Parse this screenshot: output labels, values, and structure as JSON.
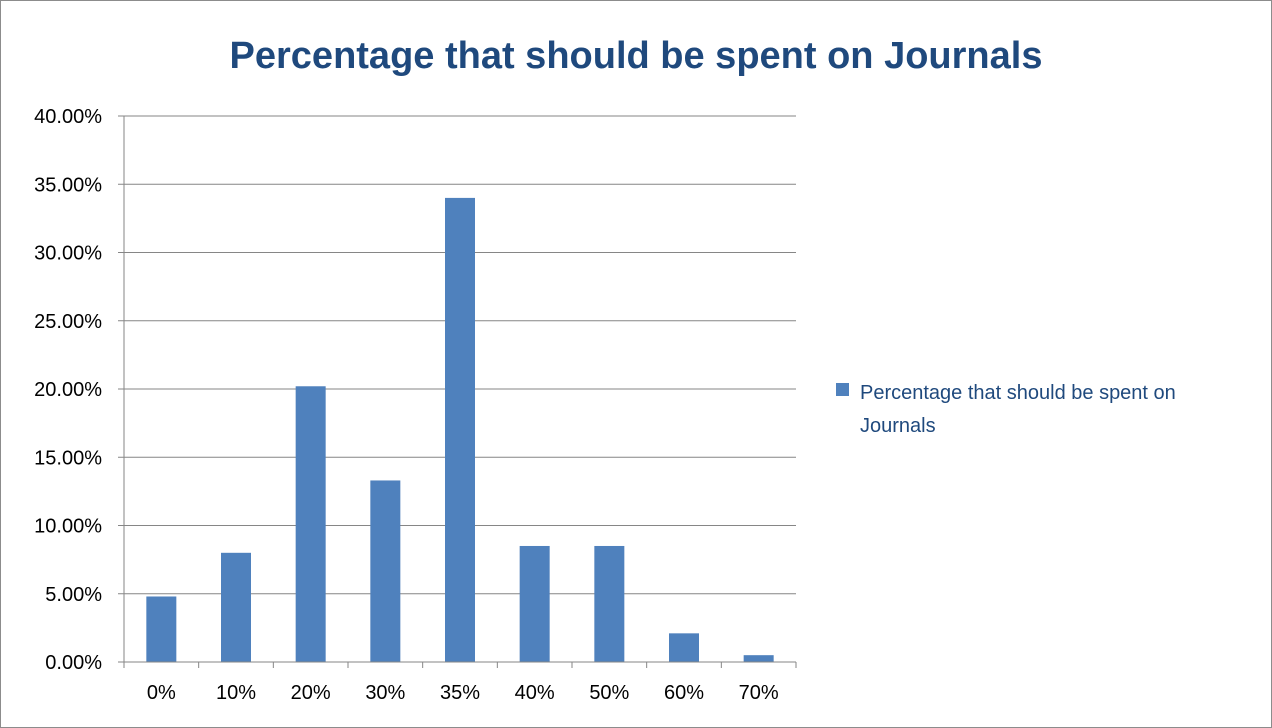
{
  "chart_data": {
    "type": "bar",
    "title": "Percentage that should be spent on Journals",
    "categories": [
      "0%",
      "10%",
      "20%",
      "30%",
      "35%",
      "40%",
      "50%",
      "60%",
      "70%"
    ],
    "series": [
      {
        "name": "Percentage that should be spent on Journals",
        "values": [
          0.048,
          0.08,
          0.202,
          0.133,
          0.34,
          0.085,
          0.085,
          0.021,
          0.005
        ],
        "color": "#4f81bd"
      }
    ],
    "yticks": [
      "0.00%",
      "5.00%",
      "10.00%",
      "15.00%",
      "20.00%",
      "25.00%",
      "30.00%",
      "35.00%",
      "40.00%"
    ],
    "ylim": [
      0,
      0.4
    ],
    "xlabel": "",
    "ylabel": "",
    "grid": true,
    "legend": {
      "position": "right",
      "lines": [
        "Percentage that should be spent on",
        "Journals"
      ]
    }
  },
  "colors": {
    "title": "#1f497d",
    "bar": "#4f81bd",
    "grid": "#868686",
    "legend_text": "#1f497d"
  }
}
